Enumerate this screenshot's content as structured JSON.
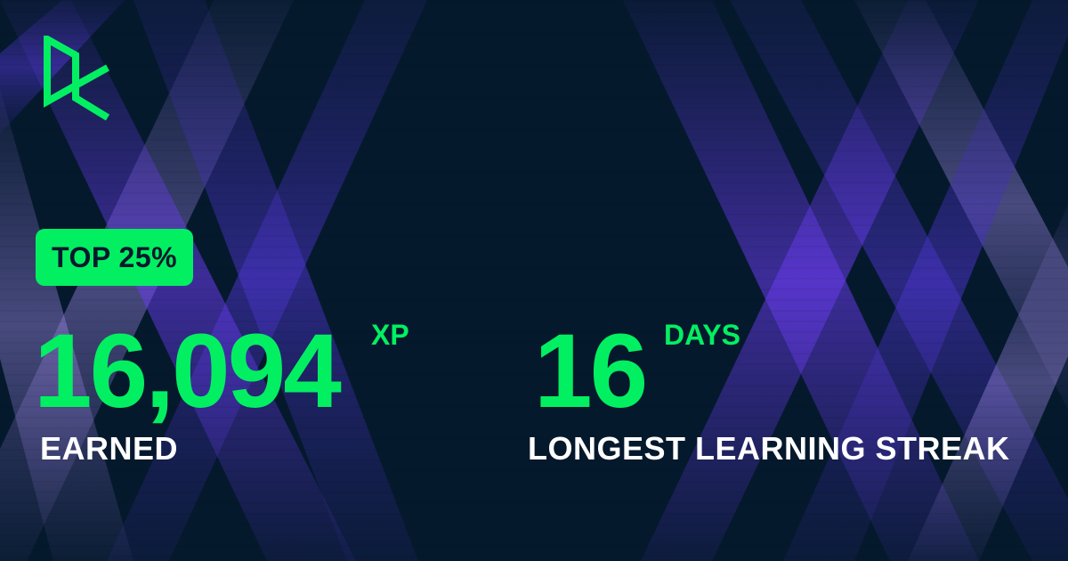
{
  "colors": {
    "background": "#05192d",
    "accent": "#03ef62",
    "text": "#ffffff",
    "band_purple": "#6a3cf0"
  },
  "brand": {
    "logo_icon": "datacamp-logo-icon"
  },
  "badge": {
    "label": "TOP 25%"
  },
  "xp": {
    "value": "16,094",
    "unit": "XP",
    "caption": "EARNED"
  },
  "streak": {
    "value": "16",
    "unit": "DAYS",
    "caption": "LONGEST LEARNING STREAK"
  }
}
